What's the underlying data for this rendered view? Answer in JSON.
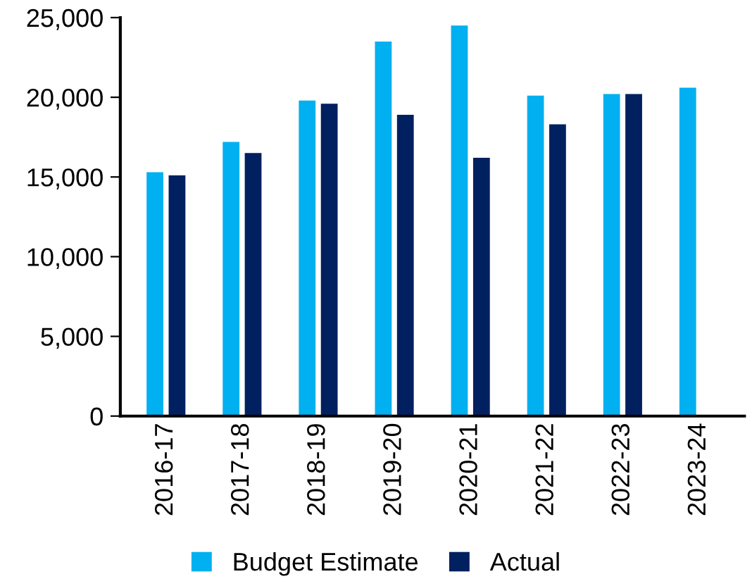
{
  "chart_data": {
    "type": "bar",
    "categories": [
      "2016-17",
      "2017-18",
      "2018-19",
      "2019-20",
      "2020-21",
      "2021-22",
      "2022-23",
      "2023-24"
    ],
    "series": [
      {
        "name": "Budget Estimate",
        "color": "#00b0f0",
        "values": [
          15300,
          17200,
          19800,
          23500,
          24500,
          20100,
          20200,
          20600
        ]
      },
      {
        "name": "Actual",
        "color": "#002060",
        "values": [
          15100,
          16500,
          19600,
          18900,
          16200,
          18300,
          20200,
          null
        ]
      }
    ],
    "ylim": [
      0,
      25000
    ],
    "yticks": [
      {
        "value": 0,
        "label": "0"
      },
      {
        "value": 5000,
        "label": "5,000"
      },
      {
        "value": 10000,
        "label": "10,000"
      },
      {
        "value": 15000,
        "label": "15,000"
      },
      {
        "value": 20000,
        "label": "20,000"
      },
      {
        "value": 25000,
        "label": "25,000"
      }
    ],
    "grid": false,
    "legend": "bottom"
  }
}
